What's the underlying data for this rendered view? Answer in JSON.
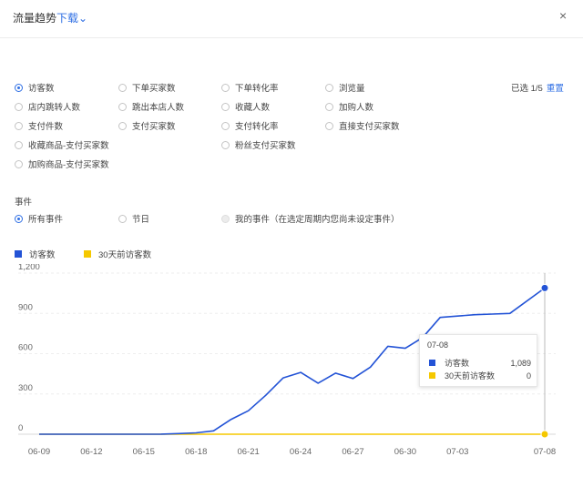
{
  "header": {
    "title": "流量趋势",
    "download_label": "下载",
    "caret": "⌄",
    "close": "×"
  },
  "metrics": [
    {
      "label": "访客数",
      "checked": true
    },
    {
      "label": "下单买家数",
      "checked": false
    },
    {
      "label": "下单转化率",
      "checked": false
    },
    {
      "label": "浏览量",
      "checked": false
    },
    {
      "label": "店内跳转人数",
      "checked": false
    },
    {
      "label": "跳出本店人数",
      "checked": false
    },
    {
      "label": "收藏人数",
      "checked": false
    },
    {
      "label": "加购人数",
      "checked": false
    },
    {
      "label": "支付件数",
      "checked": false
    },
    {
      "label": "支付买家数",
      "checked": false
    },
    {
      "label": "支付转化率",
      "checked": false
    },
    {
      "label": "直接支付买家数",
      "checked": false
    },
    {
      "label": "收藏商品-支付买家数",
      "checked": false
    },
    {
      "label": "粉丝支付买家数",
      "checked": false
    },
    {
      "label": "加购商品-支付买家数",
      "checked": false
    }
  ],
  "selection": {
    "text": "已选 1/5",
    "reset": "重置"
  },
  "events": {
    "label": "事件",
    "options": [
      {
        "label": "所有事件",
        "checked": true,
        "disabled": false
      },
      {
        "label": "节日",
        "checked": false,
        "disabled": false
      },
      {
        "label": "我的事件（在选定周期内您尚未设定事件）",
        "checked": false,
        "disabled": true
      }
    ]
  },
  "colors": {
    "series1": "#2353d6",
    "series2": "#f5c800",
    "link": "#2f6fe4"
  },
  "tooltip": {
    "date": "07-08",
    "rows": [
      {
        "label": "访客数",
        "value": "1,089"
      },
      {
        "label": "30天前访客数",
        "value": "0"
      }
    ]
  },
  "chart_data": {
    "type": "line",
    "ylim": [
      0,
      1200
    ],
    "yticks": [
      "0",
      "300",
      "600",
      "900",
      "1,200"
    ],
    "xticks": [
      "06-09",
      "06-12",
      "06-15",
      "06-18",
      "06-21",
      "06-24",
      "06-27",
      "06-30",
      "07-03",
      "07-08"
    ],
    "series": [
      {
        "name": "访客数",
        "points": [
          [
            "06-09",
            0
          ],
          [
            "06-15",
            0
          ],
          [
            "06-16",
            1
          ],
          [
            "06-17",
            5
          ],
          [
            "06-18",
            10
          ],
          [
            "06-19",
            25
          ],
          [
            "06-20",
            110
          ],
          [
            "06-21",
            175
          ],
          [
            "06-22",
            290
          ],
          [
            "06-23",
            420
          ],
          [
            "06-24",
            460
          ],
          [
            "06-25",
            380
          ],
          [
            "06-26",
            455
          ],
          [
            "06-27",
            415
          ],
          [
            "06-28",
            500
          ],
          [
            "06-29",
            655
          ],
          [
            "06-30",
            640
          ],
          [
            "07-01",
            720
          ],
          [
            "07-02",
            870
          ],
          [
            "07-03",
            880
          ],
          [
            "07-04",
            890
          ],
          [
            "07-05",
            895
          ],
          [
            "07-06",
            900
          ],
          [
            "07-08",
            1089
          ]
        ]
      },
      {
        "name": "30天前访客数",
        "points": [
          [
            "06-09",
            0
          ],
          [
            "07-08",
            0
          ]
        ]
      }
    ]
  }
}
